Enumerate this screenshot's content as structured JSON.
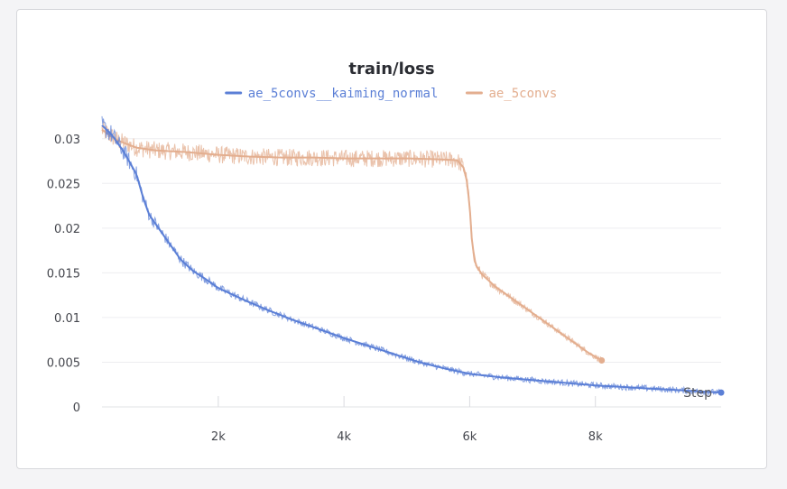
{
  "chart_data": {
    "type": "line",
    "title": "train/loss",
    "xlabel": "Step",
    "ylabel": "",
    "xlim": [
      150,
      10000
    ],
    "ylim": [
      0,
      0.0325
    ],
    "x_ticks": [
      {
        "value": 2000,
        "label": "2k"
      },
      {
        "value": 4000,
        "label": "4k"
      },
      {
        "value": 6000,
        "label": "6k"
      },
      {
        "value": 8000,
        "label": "8k"
      }
    ],
    "y_ticks": [
      {
        "value": 0,
        "label": "0"
      },
      {
        "value": 0.005,
        "label": "0.005"
      },
      {
        "value": 0.01,
        "label": "0.01"
      },
      {
        "value": 0.015,
        "label": "0.015"
      },
      {
        "value": 0.02,
        "label": "0.02"
      },
      {
        "value": 0.025,
        "label": "0.025"
      },
      {
        "value": 0.03,
        "label": "0.03"
      }
    ],
    "grid": true,
    "legend_position": "top-center",
    "series": [
      {
        "name": "ae_5convs__kaiming_normal",
        "color": "#5b7fd6",
        "x": [
          150,
          300,
          500,
          700,
          800,
          900,
          1000,
          1200,
          1400,
          1600,
          1800,
          2000,
          2400,
          2800,
          3200,
          3600,
          4000,
          4400,
          4800,
          5200,
          5600,
          6000,
          6500,
          7000,
          7500,
          8000,
          8500,
          9000,
          9500,
          10000
        ],
        "y": [
          0.0315,
          0.0305,
          0.0285,
          0.026,
          0.0235,
          0.0215,
          0.0205,
          0.0185,
          0.0165,
          0.0152,
          0.0143,
          0.0133,
          0.012,
          0.0108,
          0.0097,
          0.0087,
          0.0077,
          0.0068,
          0.0059,
          0.005,
          0.0043,
          0.0037,
          0.0033,
          0.003,
          0.0027,
          0.0024,
          0.0022,
          0.002,
          0.0018,
          0.0016
        ]
      },
      {
        "name": "ae_5convs",
        "color": "#e3ae8f",
        "x": [
          150,
          400,
          700,
          1000,
          1500,
          2000,
          2500,
          3000,
          3500,
          4000,
          4500,
          5000,
          5500,
          5800,
          5900,
          5950,
          6000,
          6030,
          6070,
          6100,
          6200,
          6400,
          6700,
          7000,
          7300,
          7600,
          7900,
          8100
        ],
        "y": [
          0.031,
          0.0298,
          0.029,
          0.0287,
          0.0285,
          0.0282,
          0.028,
          0.0279,
          0.0279,
          0.0278,
          0.0278,
          0.0278,
          0.0277,
          0.0276,
          0.0268,
          0.0255,
          0.0225,
          0.019,
          0.0168,
          0.0158,
          0.0148,
          0.0135,
          0.012,
          0.0105,
          0.009,
          0.0075,
          0.006,
          0.0052
        ]
      }
    ]
  }
}
